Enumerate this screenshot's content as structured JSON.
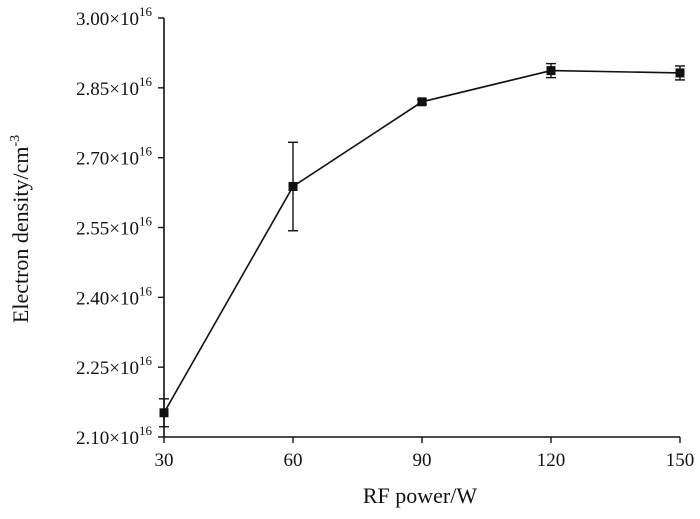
{
  "chart_data": {
    "type": "line",
    "title": "",
    "xlabel": "RF power/W",
    "ylabel": "Electron density/cm",
    "ylabel_superscript": "-3",
    "x": [
      30,
      60,
      90,
      120,
      150
    ],
    "series": [
      {
        "values": [
          2.152e+16,
          2.638e+16,
          2.82e+16,
          2.887e+16,
          2.882e+16
        ],
        "errors": [
          300000000000000.0,
          950000000000000.0,
          50000000000000.0,
          150000000000000.0,
          150000000000000.0
        ],
        "marker": "square",
        "color": "#111111"
      }
    ],
    "xlim": [
      30,
      150
    ],
    "ylim": [
      2.1e+16,
      3e+16
    ],
    "xticks": [
      30,
      60,
      90,
      120,
      150
    ],
    "yticks": [
      {
        "value": 2.1e+16,
        "mantissa": "2.10",
        "base": "×10",
        "exponent": "16"
      },
      {
        "value": 2.25e+16,
        "mantissa": "2.25",
        "base": "×10",
        "exponent": "16"
      },
      {
        "value": 2.4e+16,
        "mantissa": "2.40",
        "base": "×10",
        "exponent": "16"
      },
      {
        "value": 2.55e+16,
        "mantissa": "2.55",
        "base": "×10",
        "exponent": "16"
      },
      {
        "value": 2.7e+16,
        "mantissa": "2.70",
        "base": "×10",
        "exponent": "16"
      },
      {
        "value": 2.85e+16,
        "mantissa": "2.85",
        "base": "×10",
        "exponent": "16"
      },
      {
        "value": 3e+16,
        "mantissa": "3.00",
        "base": "×10",
        "exponent": "16"
      }
    ],
    "grid": false,
    "legend": "none"
  }
}
